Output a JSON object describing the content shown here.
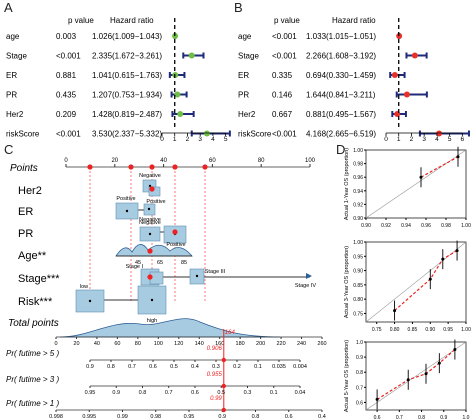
{
  "panel_letters": {
    "a": "A",
    "b": "B",
    "c": "C",
    "d": "D"
  },
  "forest_headers": {
    "p": "p value",
    "hr": "Hazard ratio"
  },
  "forest_a": {
    "rows": [
      {
        "label": "age",
        "p": "0.003",
        "hr_text": "1.026(1.009−1.043)",
        "hr": 1.026,
        "lo": 1.009,
        "hi": 1.043
      },
      {
        "label": "Stage",
        "p": "<0.001",
        "hr_text": "2.335(1.672−3.261)",
        "hr": 2.335,
        "lo": 1.672,
        "hi": 3.261
      },
      {
        "label": "ER",
        "p": "0.881",
        "hr_text": "1.041(0.615−1.763)",
        "hr": 1.041,
        "lo": 0.615,
        "hi": 1.763
      },
      {
        "label": "PR",
        "p": "0.435",
        "hr_text": "1.207(0.753−1.934)",
        "hr": 1.207,
        "lo": 0.753,
        "hi": 1.934
      },
      {
        "label": "Her2",
        "p": "0.209",
        "hr_text": "1.428(0.819−2.487)",
        "hr": 1.428,
        "lo": 0.819,
        "hi": 2.487
      },
      {
        "label": "riskScore",
        "p": "<0.001",
        "hr_text": "3.530(2.337−5.332)",
        "hr": 3.53,
        "lo": 2.337,
        "hi": 5.332
      }
    ],
    "axis_ticks": [
      "0",
      "1",
      "2",
      "3",
      "4",
      "5"
    ],
    "axis_min": 0,
    "axis_max": 5.5,
    "marker_color": "#6dbe45"
  },
  "forest_b": {
    "rows": [
      {
        "label": "age",
        "p": "<0.001",
        "hr_text": "1.033(1.015−1.051)",
        "hr": 1.033,
        "lo": 1.015,
        "hi": 1.051
      },
      {
        "label": "Stage",
        "p": "<0.001",
        "hr_text": "2.266(1.608−3.192)",
        "hr": 2.266,
        "lo": 1.608,
        "hi": 3.192
      },
      {
        "label": "ER",
        "p": "0.335",
        "hr_text": "0.694(0.330−1.459)",
        "hr": 0.694,
        "lo": 0.33,
        "hi": 1.459
      },
      {
        "label": "PR",
        "p": "0.146",
        "hr_text": "1.644(0.841−3.211)",
        "hr": 1.644,
        "lo": 0.841,
        "hi": 3.211
      },
      {
        "label": "Her2",
        "p": "0.667",
        "hr_text": "0.881(0.495−1.567)",
        "hr": 0.881,
        "lo": 0.495,
        "hi": 1.567
      },
      {
        "label": "riskScore",
        "p": "<0.001",
        "hr_text": "4.168(2.665−6.519)",
        "hr": 4.168,
        "lo": 2.665,
        "hi": 6.519
      }
    ],
    "axis_ticks": [
      "0",
      "1",
      "2",
      "3",
      "4",
      "5",
      "6"
    ],
    "axis_min": 0,
    "axis_max": 6.6,
    "marker_color": "#e8302a"
  },
  "nomogram": {
    "points_label": "Points",
    "points_ticks": [
      "0",
      "20",
      "40",
      "60",
      "80",
      "100"
    ],
    "variables": [
      "Her2",
      "ER",
      "PR",
      "Age**",
      "Stage***",
      "Risk***"
    ],
    "labels": {
      "her2_neg": "Negative",
      "her2_pos": "Positive",
      "er_pos": "Positive",
      "er_neg": "Negative",
      "pr_neg": "Negative",
      "pr_pos": "Positive",
      "stage_iii": "Stage III",
      "stage_i": "Stage I",
      "stage_ii": "Stage II",
      "stage_iv": "Stage IV",
      "risk_low": "low",
      "risk_high": "high"
    },
    "age_ticks": [
      "45",
      "65",
      "85"
    ],
    "total_label": "Total points",
    "total_ticks": [
      "0",
      "20",
      "40",
      "60",
      "80",
      "100",
      "120",
      "140",
      "160",
      "180",
      "200",
      "220",
      "240",
      "260"
    ],
    "total_value": "164",
    "pr5_label": "Pr( futime > 5 )",
    "pr5_ticks": [
      "0.9",
      "0.8",
      "0.7",
      "0.6",
      "0.5",
      "0.4",
      "0.3",
      "0.2",
      "0.1",
      "0.035",
      "0.004"
    ],
    "pr5_value": "0.906",
    "pr3_label": "Pr( futime > 3 )",
    "pr3_ticks": [
      "0.95",
      "0.9",
      "0.8",
      "0.7",
      "0.6",
      "0.5",
      "0.3",
      "0.1",
      "0.04"
    ],
    "pr3_value": "0.955",
    "pr1_label": "Pr( futime > 1 )",
    "pr1_ticks": [
      "0.998",
      "0.995",
      "0.99",
      "0.98",
      "0.95",
      "0.9",
      "0.8",
      "0.6",
      "0.4"
    ],
    "pr1_value": "0.99"
  },
  "calibration": [
    {
      "ylabel": "Actual 1-Year OS (proportion)",
      "ticks": [
        "0.90",
        "0.92",
        "0.94",
        "0.96",
        "0.98",
        "1.00"
      ],
      "axis_min": 0.9,
      "axis_max": 1.0,
      "points": [
        [
          0.955,
          0.96
        ],
        [
          0.992,
          0.99
        ]
      ]
    },
    {
      "ylabel": "Actual 3-Year OS (proportion)",
      "ticks": [
        "0.75",
        "0.80",
        "0.85",
        "0.90",
        "0.95",
        "1.00"
      ],
      "axis_min": 0.72,
      "axis_max": 1.0,
      "points": [
        [
          0.8,
          0.76
        ],
        [
          0.9,
          0.87
        ],
        [
          0.935,
          0.94
        ],
        [
          0.975,
          0.97
        ]
      ]
    },
    {
      "ylabel": "Actual 5-Year OS (proportion)",
      "ticks": [
        "0.6",
        "0.7",
        "0.8",
        "0.9",
        "1.0"
      ],
      "axis_min": 0.55,
      "axis_max": 1.0,
      "points": [
        [
          0.6,
          0.62
        ],
        [
          0.74,
          0.75
        ],
        [
          0.82,
          0.79
        ],
        [
          0.88,
          0.86
        ],
        [
          0.95,
          0.95
        ]
      ]
    }
  ]
}
